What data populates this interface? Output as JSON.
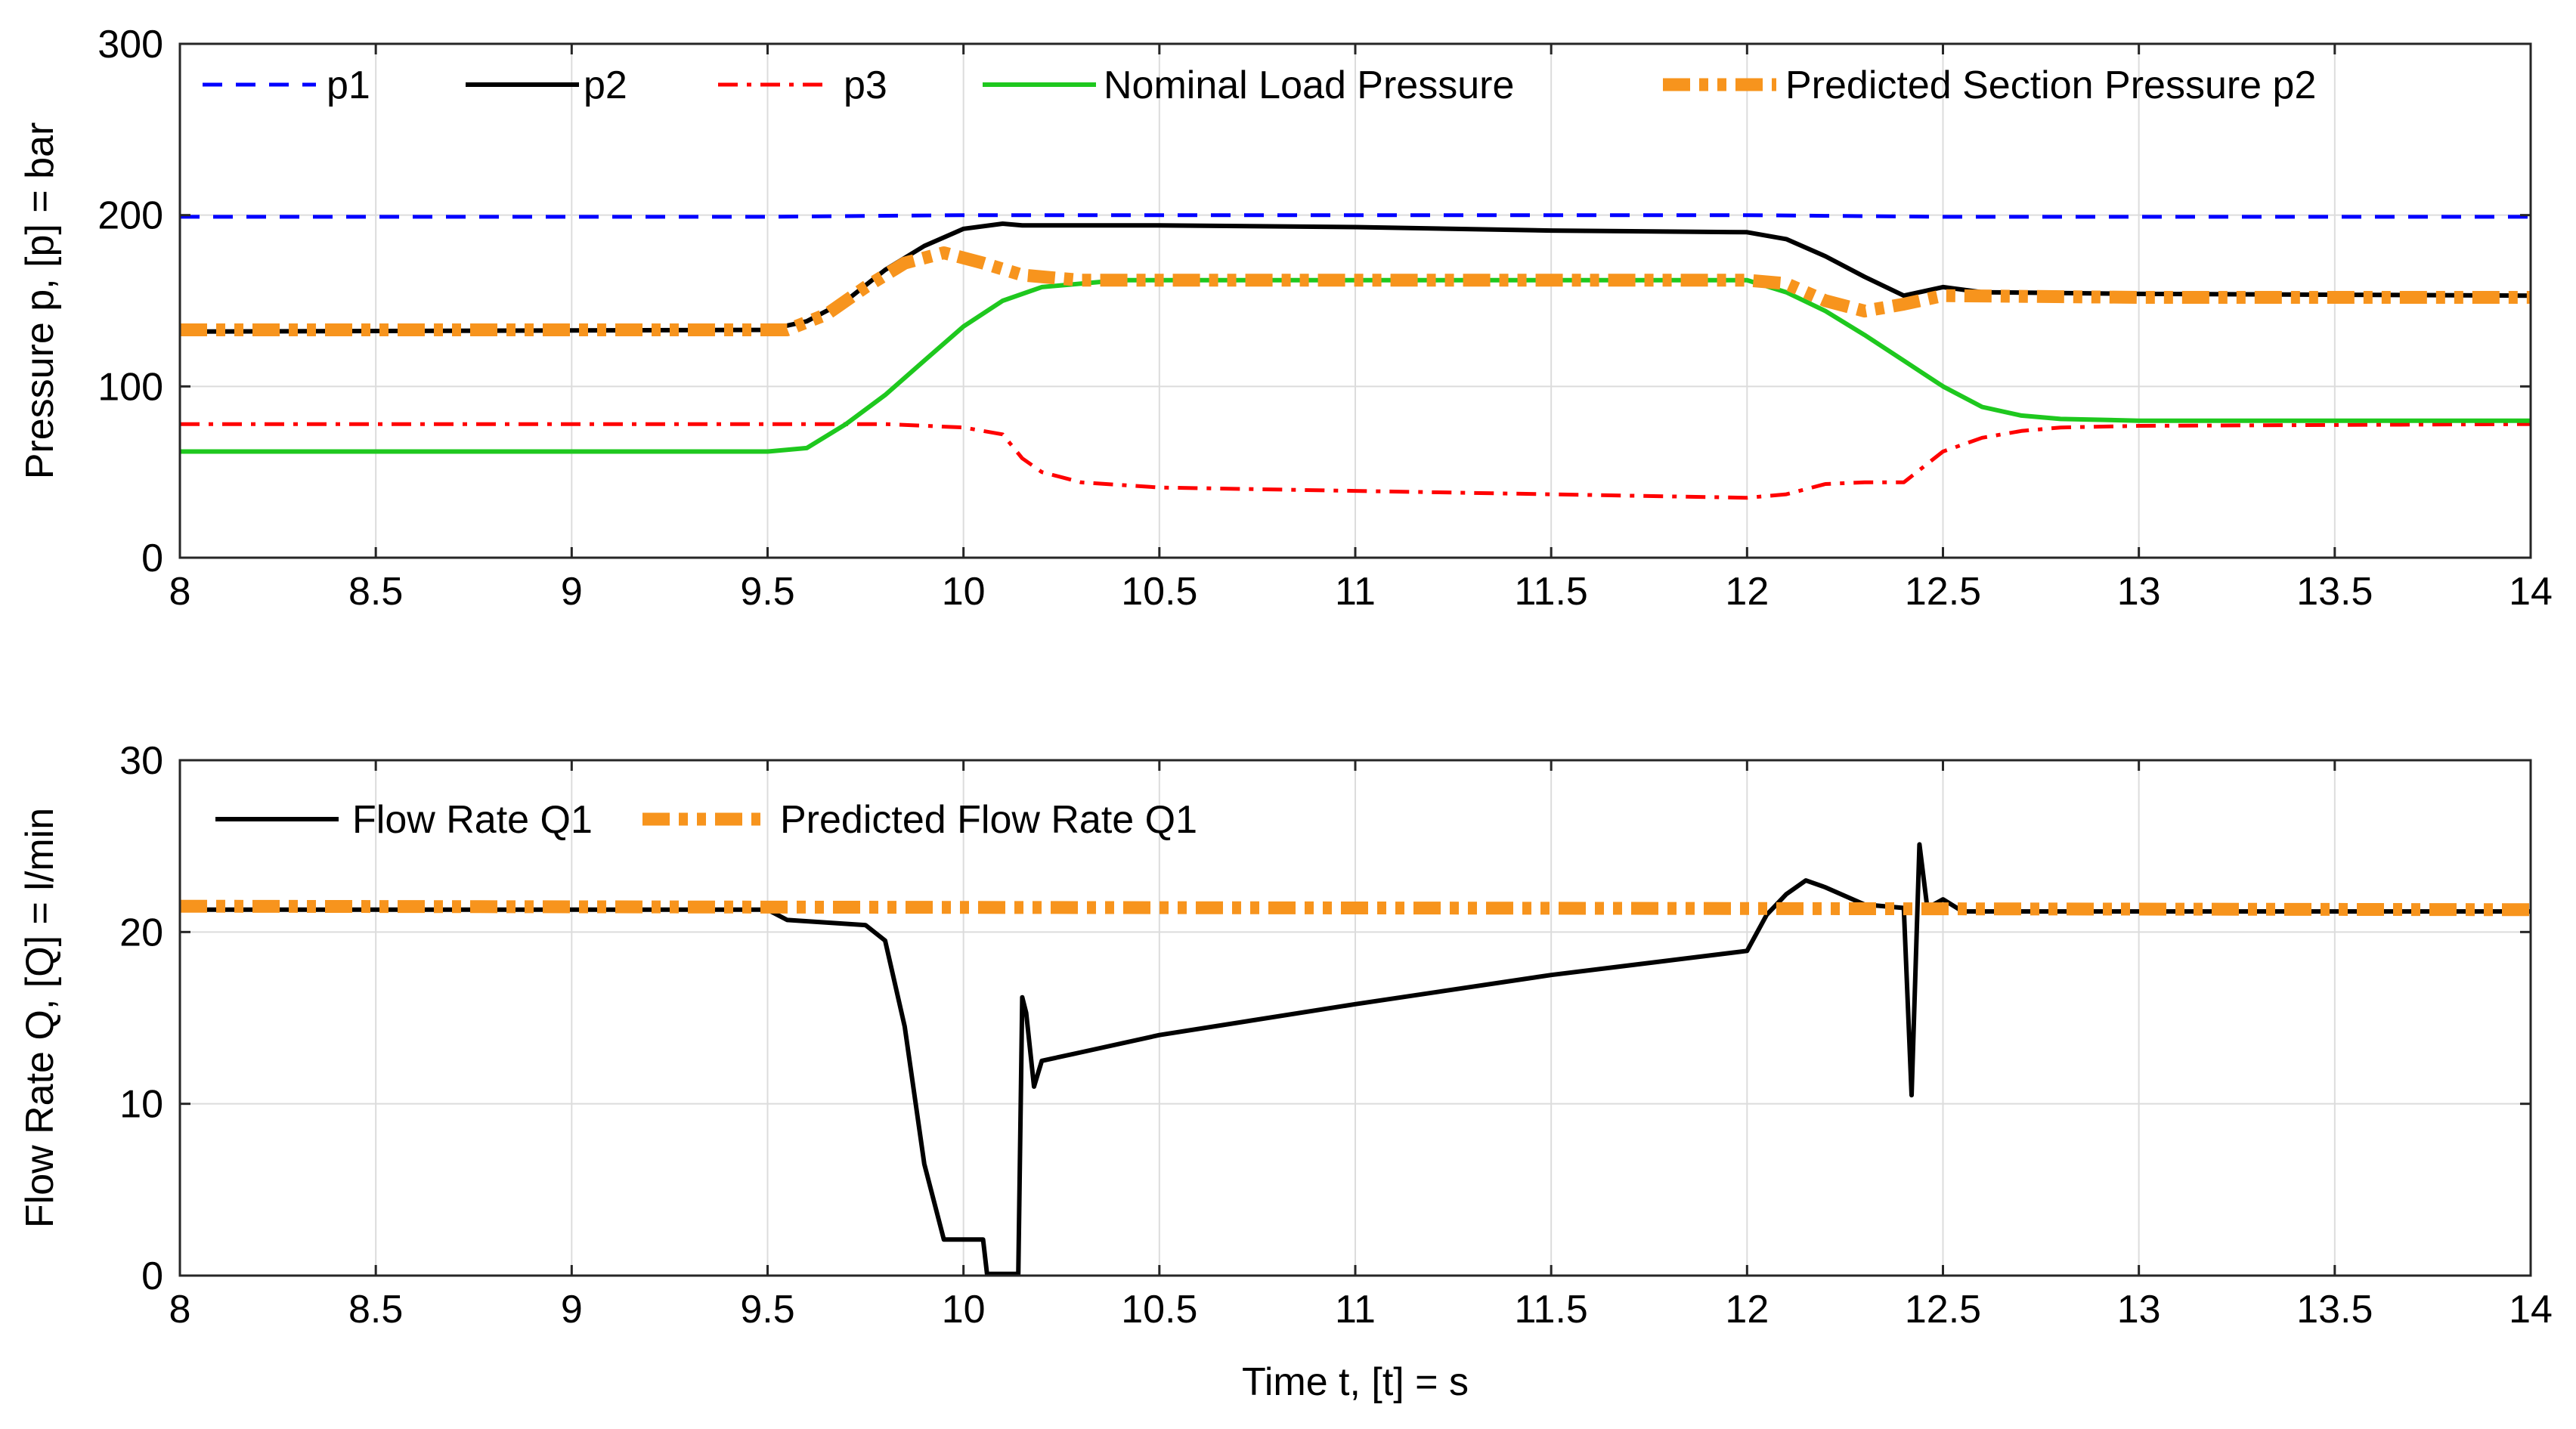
{
  "chart_data": [
    {
      "type": "line",
      "xlabel": "",
      "ylabel": "Pressure p, [p] = bar",
      "xlim": [
        8,
        14
      ],
      "ylim": [
        0,
        300
      ],
      "xticks": [
        "8",
        "8.5",
        "9",
        "9.5",
        "10",
        "10.5",
        "11",
        "11.5",
        "12",
        "12.5",
        "13",
        "13.5",
        "14"
      ],
      "yticks": [
        "0",
        "100",
        "200",
        "300"
      ],
      "grid": true,
      "legend": "top, single row",
      "series": [
        {
          "name": "p1",
          "color": "#0000ff",
          "style": "dashed",
          "x": [
            8,
            9,
            9.5,
            10,
            10.5,
            11,
            11.5,
            12,
            12.5,
            13,
            14
          ],
          "y": [
            199,
            199,
            199,
            200,
            200,
            200,
            200,
            200,
            199,
            199,
            199
          ]
        },
        {
          "name": "p2",
          "color": "#000000",
          "style": "solid",
          "x": [
            8,
            9.5,
            9.6,
            9.7,
            9.8,
            9.9,
            10.0,
            10.1,
            10.15,
            10.5,
            11,
            11.5,
            12.0,
            12.1,
            12.2,
            12.3,
            12.4,
            12.5,
            12.6,
            13,
            14
          ],
          "y": [
            132,
            133,
            138,
            150,
            168,
            182,
            192,
            195,
            194,
            194,
            193,
            191,
            190,
            186,
            176,
            164,
            153,
            158,
            155,
            154,
            153
          ]
        },
        {
          "name": "p3",
          "color": "#ff0000",
          "style": "dashdot",
          "x": [
            8,
            9.5,
            9.8,
            10.0,
            10.1,
            10.15,
            10.2,
            10.3,
            10.5,
            11,
            11.5,
            12.0,
            12.1,
            12.2,
            12.3,
            12.4,
            12.5,
            12.6,
            12.7,
            12.8,
            13,
            14
          ],
          "y": [
            78,
            78,
            78,
            76,
            72,
            58,
            50,
            44,
            41,
            39,
            37,
            35,
            37,
            43,
            44,
            44,
            62,
            70,
            74,
            76,
            77,
            78
          ]
        },
        {
          "name": "Nominal Load Pressure",
          "color": "#1ec81e",
          "style": "solid",
          "x": [
            8,
            9.5,
            9.6,
            9.7,
            9.8,
            9.9,
            10.0,
            10.1,
            10.2,
            10.4,
            12.0,
            12.1,
            12.2,
            12.3,
            12.4,
            12.5,
            12.6,
            12.7,
            12.8,
            13,
            14
          ],
          "y": [
            62,
            62,
            64,
            78,
            95,
            115,
            135,
            150,
            158,
            162,
            162,
            155,
            144,
            130,
            115,
            100,
            88,
            83,
            81,
            80,
            80
          ]
        },
        {
          "name": "Predicted Section Pressure p2",
          "color": "#f7941d",
          "style": "dashdotdot-thick",
          "x": [
            8,
            9.55,
            9.65,
            9.75,
            9.85,
            9.95,
            10.05,
            10.15,
            10.3,
            12.0,
            12.1,
            12.2,
            12.3,
            12.4,
            12.5,
            13,
            14
          ],
          "y": [
            133,
            133,
            142,
            158,
            172,
            178,
            172,
            165,
            162,
            162,
            160,
            150,
            144,
            148,
            153,
            152,
            152
          ]
        }
      ]
    },
    {
      "type": "line",
      "xlabel": "Time t, [t] = s",
      "ylabel": "Flow Rate Q, [Q] = l/min",
      "xlim": [
        8,
        14
      ],
      "ylim": [
        0,
        30
      ],
      "xticks": [
        "8",
        "8.5",
        "9",
        "9.5",
        "10",
        "10.5",
        "11",
        "11.5",
        "12",
        "12.5",
        "13",
        "13.5",
        "14"
      ],
      "yticks": [
        "0",
        "10",
        "20",
        "30"
      ],
      "grid": true,
      "legend": "top-left",
      "series": [
        {
          "name": "Flow Rate Q1",
          "color": "#000000",
          "style": "solid",
          "x": [
            8,
            9.5,
            9.55,
            9.75,
            9.8,
            9.85,
            9.9,
            9.95,
            10.05,
            10.06,
            10.14,
            10.15,
            10.16,
            10.18,
            10.2,
            10.3,
            10.5,
            11,
            11.5,
            12.0,
            12.05,
            12.1,
            12.15,
            12.2,
            12.3,
            12.4,
            12.42,
            12.44,
            12.46,
            12.5,
            12.55,
            13,
            14
          ],
          "y": [
            21.3,
            21.3,
            20.7,
            20.4,
            19.5,
            14.5,
            6.5,
            2.1,
            2.1,
            0.1,
            0.1,
            16.2,
            15.3,
            11.0,
            12.5,
            13.0,
            14.0,
            15.8,
            17.5,
            18.9,
            21.0,
            22.2,
            23.0,
            22.6,
            21.6,
            21.4,
            10.5,
            25.1,
            21.4,
            21.9,
            21.2,
            21.2,
            21.2
          ]
        },
        {
          "name": "Predicted Flow Rate Q1",
          "color": "#f7941d",
          "style": "dashdotdot-thick",
          "x": [
            8,
            14
          ],
          "y": [
            21.5,
            21.3
          ]
        }
      ]
    }
  ]
}
